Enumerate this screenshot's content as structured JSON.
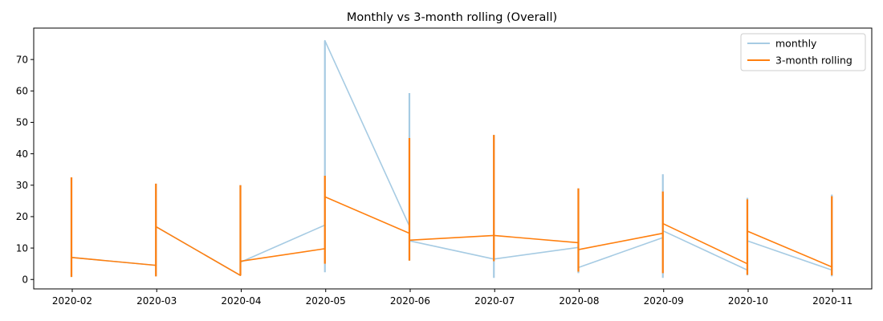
{
  "chart_data": {
    "type": "line",
    "title": "Monthly vs 3-month rolling (Overall)",
    "xlabel": "",
    "ylabel": "",
    "x_ticks": [
      "2020-02",
      "2020-03",
      "2020-04",
      "2020-05",
      "2020-06",
      "2020-07",
      "2020-08",
      "2020-09",
      "2020-10",
      "2020-11"
    ],
    "ylim": [
      -3,
      80
    ],
    "y_ticks": [
      0,
      10,
      20,
      30,
      40,
      50,
      60,
      70
    ],
    "grid": false,
    "legend_position": "top-right",
    "x_note": "x in month-end dates; each month's vertical spike spans the y range shown at that date",
    "series": [
      {
        "name": "monthly",
        "color": "#a6cbe3",
        "points": [
          {
            "x": "2020-01-31",
            "y": 7.0,
            "y_min": 0.8,
            "y_max": 32.5
          },
          {
            "x": "2020-02-29",
            "y": 4.5,
            "y_min": 1.0,
            "y_max": 30.5
          },
          {
            "x": "2020-03-31",
            "y": 5.5,
            "y_min": 1.3,
            "y_max": 30.0
          },
          {
            "x": "2020-04-30",
            "y": 17.3,
            "y_min": 2.3,
            "y_max": 76.0
          },
          {
            "x": "2020-05-31",
            "y": 12.3,
            "y_min": 6.0,
            "y_max": 59.3
          },
          {
            "x": "2020-06-30",
            "y": 6.5,
            "y_min": 0.5,
            "y_max": 46.0
          },
          {
            "x": "2020-07-31",
            "y": 10.2,
            "y_min": 2.0,
            "y_max": 29.0
          },
          {
            "x": "2020-08-31",
            "y": 15.5,
            "y_min": 0.5,
            "y_max": 33.5
          },
          {
            "x": "2020-09-30",
            "y": 12.3,
            "y_min": 1.3,
            "y_max": 26.0
          },
          {
            "x": "2020-10-31",
            "y": 3.0,
            "y_min": 1.0,
            "y_max": 27.0
          }
        ],
        "connectors": [
          {
            "from": "2020-01-31",
            "to": "2020-02-29",
            "y_from": 7.0,
            "y_to": 4.5
          },
          {
            "from": "2020-02-29",
            "to": "2020-03-31",
            "y_from": 16.8,
            "y_to": 1.3
          },
          {
            "from": "2020-03-31",
            "to": "2020-04-30",
            "y_from": 5.5,
            "y_to": 17.3
          },
          {
            "from": "2020-04-30",
            "to": "2020-05-31",
            "y_from": 76.0,
            "y_to": 17.0
          },
          {
            "from": "2020-05-31",
            "to": "2020-06-30",
            "y_from": 12.3,
            "y_to": 6.5
          },
          {
            "from": "2020-06-30",
            "to": "2020-07-31",
            "y_from": 6.5,
            "y_to": 10.2
          },
          {
            "from": "2020-07-31",
            "to": "2020-08-31",
            "y_from": 3.8,
            "y_to": 13.3
          },
          {
            "from": "2020-08-31",
            "to": "2020-09-30",
            "y_from": 15.5,
            "y_to": 3.0
          },
          {
            "from": "2020-09-30",
            "to": "2020-10-31",
            "y_from": 12.3,
            "y_to": 3.0
          }
        ]
      },
      {
        "name": "3-month rolling",
        "color": "#ff7f0e",
        "points": [
          {
            "x": "2020-01-31",
            "y": 7.0,
            "y_min": 0.8,
            "y_max": 32.5
          },
          {
            "x": "2020-02-29",
            "y": 4.5,
            "y_min": 1.0,
            "y_max": 30.5
          },
          {
            "x": "2020-03-31",
            "y": 5.5,
            "y_min": 1.3,
            "y_max": 30.0
          },
          {
            "x": "2020-04-30",
            "y": 26.3,
            "y_min": 5.0,
            "y_max": 33.0
          },
          {
            "x": "2020-05-31",
            "y": 12.3,
            "y_min": 6.0,
            "y_max": 45.0
          },
          {
            "x": "2020-06-30",
            "y": 14.0,
            "y_min": 5.8,
            "y_max": 46.0
          },
          {
            "x": "2020-07-31",
            "y": 11.7,
            "y_min": 2.5,
            "y_max": 29.0
          },
          {
            "x": "2020-08-31",
            "y": 17.8,
            "y_min": 2.0,
            "y_max": 28.0
          },
          {
            "x": "2020-09-30",
            "y": 15.4,
            "y_min": 1.5,
            "y_max": 25.5
          },
          {
            "x": "2020-10-31",
            "y": 4.0,
            "y_min": 1.3,
            "y_max": 26.5
          }
        ],
        "connectors": [
          {
            "from": "2020-01-31",
            "to": "2020-02-29",
            "y_from": 7.0,
            "y_to": 4.5
          },
          {
            "from": "2020-02-29",
            "to": "2020-03-31",
            "y_from": 16.8,
            "y_to": 1.3
          },
          {
            "from": "2020-03-31",
            "to": "2020-04-30",
            "y_from": 5.8,
            "y_to": 9.8
          },
          {
            "from": "2020-04-30",
            "to": "2020-05-31",
            "y_from": 26.3,
            "y_to": 14.7
          },
          {
            "from": "2020-05-31",
            "to": "2020-06-30",
            "y_from": 12.5,
            "y_to": 14.0
          },
          {
            "from": "2020-06-30",
            "to": "2020-07-31",
            "y_from": 14.0,
            "y_to": 11.7
          },
          {
            "from": "2020-07-31",
            "to": "2020-08-31",
            "y_from": 9.5,
            "y_to": 14.7
          },
          {
            "from": "2020-08-31",
            "to": "2020-09-30",
            "y_from": 17.8,
            "y_to": 5.0
          },
          {
            "from": "2020-09-30",
            "to": "2020-10-31",
            "y_from": 15.4,
            "y_to": 4.0
          }
        ]
      }
    ]
  }
}
